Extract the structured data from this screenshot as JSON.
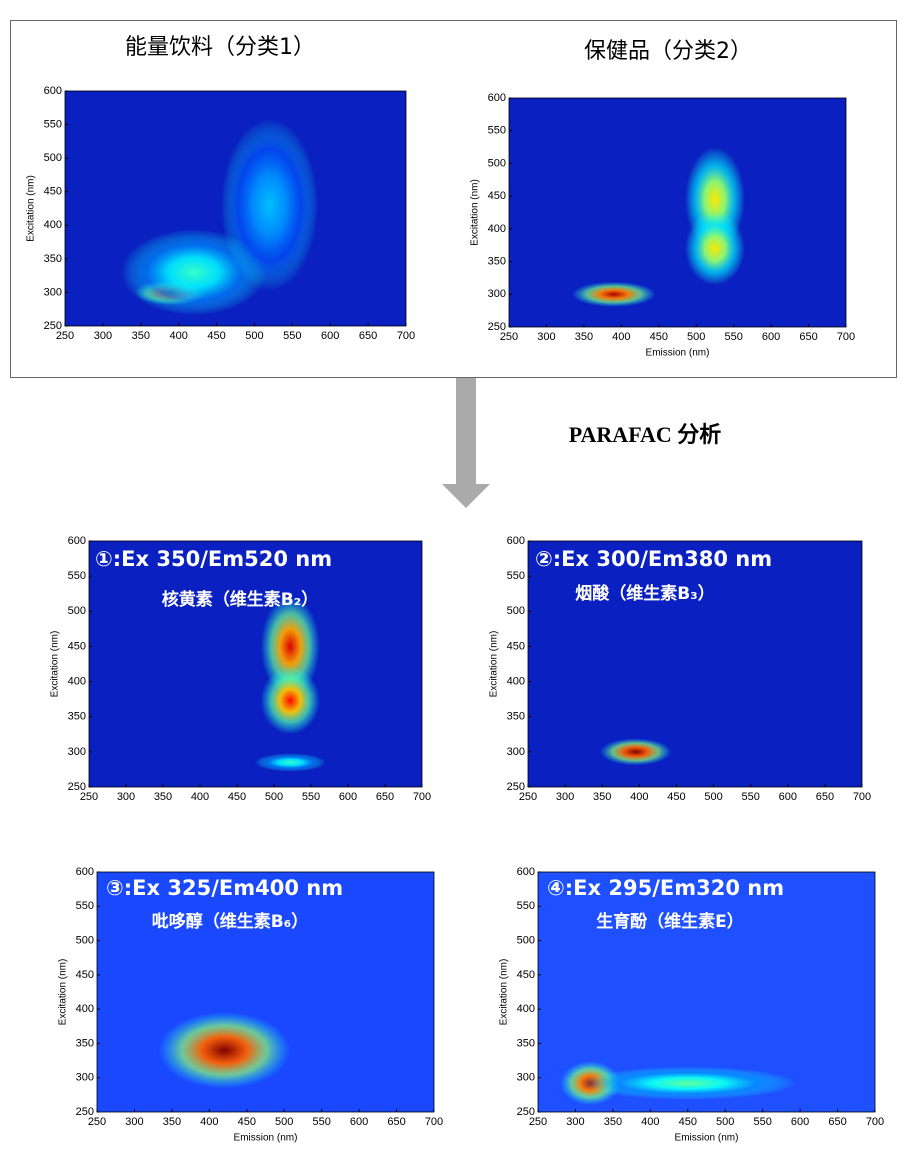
{
  "header": {
    "text": "PARAFAC 分析"
  },
  "chart_data": [
    {
      "type": "heatmap",
      "title": "能量饮料（分类1）",
      "ylabel": "Excitation (nm)",
      "background": "#0a20c0",
      "xlim": [
        250,
        700
      ],
      "ylim": [
        250,
        600
      ],
      "xticks": [
        250,
        300,
        350,
        400,
        450,
        500,
        550,
        600,
        650,
        700
      ],
      "yticks": [
        250,
        300,
        350,
        400,
        450,
        500,
        550,
        600
      ],
      "peaks": {
        "x": [
          390,
          420,
          520
        ],
        "y": [
          300,
          330,
          430
        ],
        "intensity": [
          1,
          0.35,
          0.22
        ],
        "sx": [
          30,
          60,
          40
        ],
        "sy": [
          12,
          40,
          80
        ]
      }
    },
    {
      "type": "heatmap",
      "title": "保健品（分类2）",
      "xlabel": "Emission (nm)",
      "ylabel": "Excitation (nm)",
      "background": "#0a20c0",
      "xlim": [
        250,
        700
      ],
      "ylim": [
        250,
        600
      ],
      "xticks": [
        250,
        300,
        350,
        400,
        450,
        500,
        550,
        600,
        650,
        700
      ],
      "yticks": [
        250,
        300,
        350,
        400,
        450,
        500,
        550,
        600
      ],
      "peaks": {
        "x": [
          390,
          525,
          525
        ],
        "y": [
          300,
          445,
          370
        ],
        "intensity": [
          0.95,
          0.6,
          0.6
        ],
        "sx": [
          35,
          25,
          25
        ],
        "sy": [
          12,
          50,
          35
        ]
      }
    },
    {
      "type": "heatmap",
      "title": "①:Ex 350/Em520 nm",
      "subtitle": "核黄素（维生素B₂）",
      "ylabel": "Excitation (nm)",
      "background": "#0a20c0",
      "xlim": [
        250,
        700
      ],
      "ylim": [
        250,
        600
      ],
      "xticks": [
        250,
        300,
        350,
        400,
        450,
        500,
        550,
        600,
        650,
        700
      ],
      "yticks": [
        250,
        300,
        350,
        400,
        450,
        500,
        550,
        600
      ],
      "peaks": {
        "x": [
          522,
          522,
          522
        ],
        "y": [
          450,
          373,
          285
        ],
        "intensity": [
          0.9,
          0.85,
          0.35
        ],
        "sx": [
          25,
          25,
          30
        ],
        "sy": [
          45,
          30,
          8
        ]
      }
    },
    {
      "type": "heatmap",
      "title": "②:Ex 300/Em380 nm",
      "subtitle": "烟酸（维生素B₃）",
      "ylabel": "Excitation (nm)",
      "background": "#0a20c0",
      "xlim": [
        250,
        700
      ],
      "ylim": [
        250,
        600
      ],
      "xticks": [
        250,
        300,
        350,
        400,
        450,
        500,
        550,
        600,
        650,
        700
      ],
      "yticks": [
        250,
        300,
        350,
        400,
        450,
        500,
        550,
        600
      ],
      "peaks": {
        "x": [
          395
        ],
        "y": [
          300
        ],
        "intensity": [
          1
        ],
        "sx": [
          30
        ],
        "sy": [
          12
        ]
      }
    },
    {
      "type": "heatmap",
      "title": "③:Ex 325/Em400 nm",
      "subtitle": "吡哆醇（维生素B₆）",
      "xlabel": "Emission (nm)",
      "ylabel": "Excitation (nm)",
      "background": "#1a48ff",
      "xlim": [
        250,
        700
      ],
      "ylim": [
        250,
        600
      ],
      "xticks": [
        250,
        300,
        350,
        400,
        450,
        500,
        550,
        600,
        650,
        700
      ],
      "yticks": [
        250,
        300,
        350,
        400,
        450,
        500,
        550,
        600
      ],
      "peaks": {
        "x": [
          420
        ],
        "y": [
          340
        ],
        "intensity": [
          1
        ],
        "sx": [
          55
        ],
        "sy": [
          35
        ]
      }
    },
    {
      "type": "heatmap",
      "title": "④:Ex 295/Em320 nm",
      "subtitle": "生育酚（维生素E）",
      "xlabel": "Emission (nm)",
      "ylabel": "Excitation (nm)",
      "background": "#1e50ff",
      "xlim": [
        250,
        700
      ],
      "ylim": [
        250,
        600
      ],
      "xticks": [
        250,
        300,
        350,
        400,
        450,
        500,
        550,
        600,
        650,
        700
      ],
      "yticks": [
        250,
        300,
        350,
        400,
        450,
        500,
        550,
        600
      ],
      "peaks": {
        "x": [
          320,
          450
        ],
        "y": [
          292,
          292
        ],
        "intensity": [
          0.95,
          0.4
        ],
        "sx": [
          25,
          90
        ],
        "sy": [
          20,
          15
        ]
      }
    }
  ]
}
